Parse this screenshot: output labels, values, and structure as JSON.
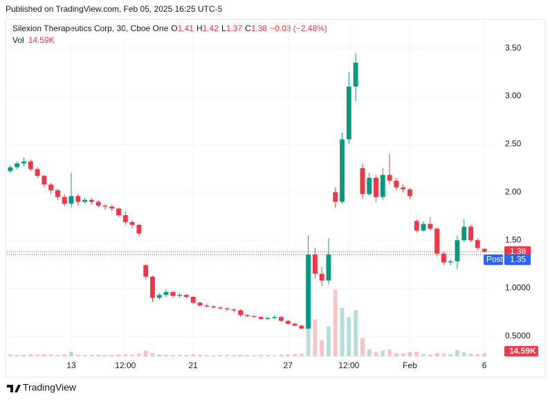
{
  "header": {
    "published": "Published on TradingView.com, Feb 05, 2025 16:25 UTC-5"
  },
  "footer": {
    "brand": "TradingView"
  },
  "chart_data": {
    "type": "candlestick",
    "symbol": "Silexion Therapeutics Corp, 30, Cboe One",
    "ohlc_labels": [
      "O",
      "H",
      "L",
      "C"
    ],
    "ohlc": [
      1.41,
      1.42,
      1.37,
      1.38
    ],
    "change_label": "−0.03 (−2.48%)",
    "volume_label": "Vol",
    "up_color": "#089981",
    "down_color": "#f23645",
    "open": [
      2.22,
      2.26,
      2.3,
      2.32,
      2.24,
      2.17,
      2.08,
      2.02,
      1.95,
      1.88,
      1.96,
      1.9,
      1.92,
      1.9,
      1.86,
      1.85,
      1.83,
      1.76,
      1.69,
      1.66,
      1.24,
      1.12,
      0.9,
      0.93,
      0.96,
      0.92,
      0.93,
      0.91,
      0.85,
      0.82,
      0.81,
      0.8,
      0.79,
      0.78,
      0.77,
      0.72,
      0.71,
      0.7,
      0.68,
      0.69,
      0.7,
      0.66,
      0.63,
      0.61,
      0.58,
      1.35,
      1.15,
      1.08,
      2.0,
      1.9,
      2.55,
      3.1,
      2.25,
      1.98,
      2.15,
      1.95,
      2.18,
      2.12,
      2.05,
      2.03,
      1.7,
      1.6,
      1.67,
      1.62,
      1.36,
      1.27,
      1.28,
      1.5,
      1.64,
      1.5,
      1.41
    ],
    "high": [
      2.28,
      2.32,
      2.36,
      2.34,
      2.26,
      2.18,
      2.1,
      2.04,
      1.98,
      2.2,
      1.98,
      1.94,
      1.94,
      1.92,
      1.88,
      1.87,
      1.84,
      1.8,
      1.71,
      1.67,
      1.25,
      1.13,
      0.95,
      0.99,
      0.97,
      0.95,
      0.94,
      0.92,
      0.86,
      0.84,
      0.82,
      0.81,
      0.8,
      0.79,
      0.78,
      0.73,
      0.72,
      0.71,
      0.7,
      0.72,
      0.71,
      0.67,
      0.64,
      0.62,
      1.55,
      1.42,
      1.22,
      1.52,
      2.05,
      2.62,
      3.25,
      3.45,
      2.3,
      2.2,
      2.18,
      2.25,
      2.4,
      2.15,
      2.08,
      2.04,
      1.72,
      1.7,
      1.74,
      1.63,
      1.38,
      1.3,
      1.55,
      1.72,
      1.66,
      1.52,
      1.42
    ],
    "low": [
      2.2,
      2.24,
      2.27,
      2.22,
      2.15,
      2.05,
      1.98,
      1.92,
      1.85,
      1.84,
      1.86,
      1.88,
      1.87,
      1.84,
      1.82,
      1.8,
      1.74,
      1.66,
      1.62,
      1.54,
      1.1,
      0.86,
      0.88,
      0.91,
      0.9,
      0.9,
      0.89,
      0.83,
      0.81,
      0.8,
      0.79,
      0.78,
      0.76,
      0.75,
      0.7,
      0.7,
      0.69,
      0.67,
      0.67,
      0.68,
      0.65,
      0.62,
      0.6,
      0.57,
      0.57,
      1.1,
      1.02,
      1.04,
      1.84,
      1.88,
      2.5,
      2.95,
      1.93,
      1.96,
      1.9,
      1.92,
      2.08,
      2.02,
      2.0,
      1.93,
      1.58,
      1.59,
      1.6,
      1.33,
      1.24,
      1.24,
      1.2,
      1.48,
      1.48,
      1.4,
      1.37
    ],
    "close": [
      2.26,
      2.3,
      2.32,
      2.24,
      2.17,
      2.08,
      2.02,
      1.95,
      1.88,
      1.96,
      1.9,
      1.92,
      1.9,
      1.86,
      1.85,
      1.83,
      1.76,
      1.69,
      1.66,
      1.57,
      1.12,
      0.9,
      0.93,
      0.96,
      0.92,
      0.93,
      0.91,
      0.85,
      0.82,
      0.81,
      0.8,
      0.79,
      0.78,
      0.77,
      0.72,
      0.71,
      0.7,
      0.68,
      0.69,
      0.7,
      0.66,
      0.63,
      0.61,
      0.58,
      1.35,
      1.15,
      1.08,
      1.35,
      1.9,
      2.55,
      3.1,
      3.35,
      1.98,
      2.15,
      1.95,
      2.18,
      2.12,
      2.05,
      2.03,
      1.96,
      1.6,
      1.67,
      1.62,
      1.36,
      1.27,
      1.28,
      1.5,
      1.64,
      1.5,
      1.42,
      1.38
    ],
    "volume": [
      8000,
      6000,
      7000,
      9000,
      8000,
      10000,
      9000,
      7000,
      9000,
      20000,
      8000,
      6000,
      7000,
      8000,
      6000,
      7000,
      9000,
      10000,
      8000,
      12000,
      25000,
      15000,
      9000,
      8000,
      6000,
      7000,
      6000,
      9000,
      7000,
      6000,
      5000,
      6000,
      7000,
      5000,
      8000,
      6000,
      5000,
      7000,
      6000,
      5000,
      8000,
      9000,
      10000,
      12000,
      290000,
      160000,
      70000,
      130000,
      290000,
      210000,
      170000,
      200000,
      80000,
      30000,
      20000,
      25000,
      30000,
      15000,
      12000,
      18000,
      20000,
      10000,
      8000,
      15000,
      12000,
      10000,
      28000,
      18000,
      12000,
      10000,
      14590
    ],
    "volume_lim": [
      0,
      300000
    ],
    "xlim": [
      -0.5,
      70.5
    ],
    "xticks": [
      {
        "value": 9,
        "label": "13"
      },
      {
        "value": 17,
        "label": "12:00"
      },
      {
        "value": 27,
        "label": "21"
      },
      {
        "value": 41,
        "label": "27"
      },
      {
        "value": 50,
        "label": "12:00"
      },
      {
        "value": 59,
        "label": "Feb"
      },
      {
        "value": 70,
        "label": "6"
      }
    ],
    "ylim": [
      0.29,
      3.8
    ],
    "yticks": [
      {
        "value": 0.5,
        "label": "0.5000"
      },
      {
        "value": 1,
        "label": "1.0000"
      },
      {
        "value": 1.5,
        "label": "1.50"
      },
      {
        "value": 2,
        "label": "2.00"
      },
      {
        "value": 2.5,
        "label": "2.50"
      },
      {
        "value": 3,
        "label": "3.00"
      },
      {
        "value": 3.5,
        "label": "3.50"
      }
    ],
    "grid": true,
    "last_price": 1.38,
    "post_market": {
      "name": "Post",
      "value": 1.35,
      "color": "#2962ff"
    },
    "last_volume": {
      "value": 14590,
      "label": "14.59K"
    }
  }
}
